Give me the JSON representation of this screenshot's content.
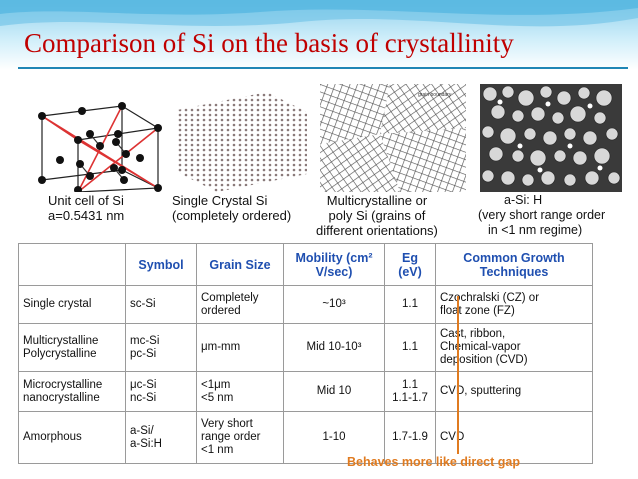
{
  "slide": {
    "title": "Comparison of Si on the basis of crystallinity",
    "colors": {
      "title": "#c00000",
      "header_blue": "#1f4fb0",
      "note_orange": "#e07b20"
    }
  },
  "figures": {
    "unit_cell_caption": [
      "Unit cell of Si",
      "a=0.5431 nm"
    ],
    "single_crystal_caption": [
      "Single  Crystal Si",
      "(completely ordered)"
    ],
    "multi_caption": [
      "Multicrystalline or",
      "poly Si (grains of",
      "different orientations)"
    ],
    "grain_boundary_label": "grain boundary",
    "amorphous_caption": [
      "a-Si: H",
      "(very short range order",
      "in <1 nm regime)"
    ]
  },
  "table": {
    "headers": [
      "",
      "Symbol",
      "Grain Size",
      "Mobility (cm² V/sec)",
      "Eg (eV)",
      "Common Growth Techniques"
    ],
    "rows": [
      {
        "type": [
          "Single crystal"
        ],
        "symbol": [
          "sc-Si"
        ],
        "grain": [
          "Completely",
          "ordered"
        ],
        "mobility": [
          "~10³"
        ],
        "eg": [
          "1.1"
        ],
        "tech": [
          "Czochralski (CZ) or",
          "float zone (FZ)"
        ]
      },
      {
        "type": [
          "Multicrystalline",
          "Polycrystalline"
        ],
        "symbol": [
          "mc-Si",
          "pc-Si"
        ],
        "grain": [
          "μm-mm"
        ],
        "mobility": [
          "Mid 10-10³"
        ],
        "eg": [
          "1.1"
        ],
        "tech": [
          "Cast, ribbon,",
          "Chemical-vapor",
          "deposition (CVD)"
        ]
      },
      {
        "type": [
          "Microcrystalline",
          "nanocrystalline"
        ],
        "symbol": [
          "μc-Si",
          "nc-Si"
        ],
        "grain": [
          "<1μm",
          "<5 nm"
        ],
        "mobility": [
          "Mid 10"
        ],
        "eg": [
          "1.1",
          "1.1-1.7"
        ],
        "tech": [
          "CVD, sputtering"
        ]
      },
      {
        "type": [
          "Amorphous"
        ],
        "symbol": [
          "a-Si/",
          "a-Si:H"
        ],
        "grain": [
          "Very short",
          "range order",
          "<1 nm"
        ],
        "mobility": [
          "1-10"
        ],
        "eg": [
          "1.7-1.9"
        ],
        "tech": [
          "CVD"
        ]
      }
    ]
  },
  "note": "Behaves more like direct gap"
}
